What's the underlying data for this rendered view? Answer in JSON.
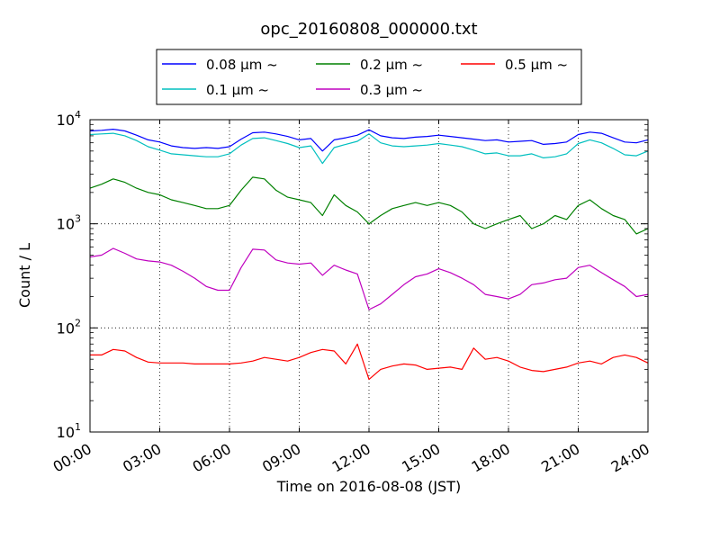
{
  "chart_data": {
    "type": "line",
    "title": "opc_20160808_000000.txt",
    "xlabel": "Time on 2016-08-08 (JST)",
    "ylabel": "Count / L",
    "xlim": [
      "00:00",
      "24:00"
    ],
    "ylim": [
      10,
      10000
    ],
    "yscale": "log",
    "grid": true,
    "legend_position": "top-center",
    "x_ticks": [
      "00:00",
      "03:00",
      "06:00",
      "09:00",
      "12:00",
      "15:00",
      "18:00",
      "21:00",
      "24:00"
    ],
    "y_ticks": [
      {
        "value": 10,
        "base": "10",
        "exp": "1"
      },
      {
        "value": 100,
        "base": "10",
        "exp": "2"
      },
      {
        "value": 1000,
        "base": "10",
        "exp": "3"
      },
      {
        "value": 10000,
        "base": "10",
        "exp": "4"
      }
    ],
    "x": [
      "00:00",
      "00:30",
      "01:00",
      "01:30",
      "02:00",
      "02:30",
      "03:00",
      "03:30",
      "04:00",
      "04:30",
      "05:00",
      "05:30",
      "06:00",
      "06:30",
      "07:00",
      "07:30",
      "08:00",
      "08:30",
      "09:00",
      "09:30",
      "10:00",
      "10:30",
      "11:00",
      "11:30",
      "12:00",
      "12:30",
      "13:00",
      "13:30",
      "14:00",
      "14:30",
      "15:00",
      "15:30",
      "16:00",
      "16:30",
      "17:00",
      "17:30",
      "18:00",
      "18:30",
      "19:00",
      "19:30",
      "20:00",
      "20:30",
      "21:00",
      "21:30",
      "22:00",
      "22:30",
      "23:00",
      "23:30",
      "24:00"
    ],
    "series": [
      {
        "name": "0.08 μm ~",
        "color": "#0000ff",
        "values": [
          7800,
          7900,
          8100,
          7800,
          7100,
          6400,
          6100,
          5600,
          5400,
          5300,
          5400,
          5300,
          5500,
          6500,
          7500,
          7600,
          7300,
          6900,
          6400,
          6600,
          5000,
          6400,
          6700,
          7100,
          8000,
          7000,
          6700,
          6600,
          6800,
          6900,
          7100,
          6900,
          6700,
          6500,
          6300,
          6400,
          6100,
          6200,
          6300,
          5800,
          5900,
          6100,
          7200,
          7600,
          7400,
          6700,
          6100,
          6000,
          6400
        ]
      },
      {
        "name": "0.1 μm ~",
        "color": "#00bfbf",
        "values": [
          7200,
          7300,
          7400,
          7000,
          6300,
          5500,
          5100,
          4700,
          4600,
          4500,
          4400,
          4400,
          4700,
          5700,
          6600,
          6700,
          6300,
          5900,
          5400,
          5600,
          3800,
          5400,
          5800,
          6200,
          7300,
          6000,
          5600,
          5500,
          5600,
          5700,
          5900,
          5700,
          5500,
          5100,
          4700,
          4800,
          4500,
          4500,
          4700,
          4300,
          4400,
          4700,
          5900,
          6400,
          6000,
          5300,
          4600,
          4500,
          5000
        ]
      },
      {
        "name": "0.2 μm ~",
        "color": "#008000",
        "values": [
          2200,
          2400,
          2700,
          2500,
          2200,
          2000,
          1900,
          1700,
          1600,
          1500,
          1400,
          1400,
          1500,
          2100,
          2800,
          2700,
          2100,
          1800,
          1700,
          1600,
          1200,
          1900,
          1500,
          1300,
          1000,
          1200,
          1400,
          1500,
          1600,
          1500,
          1600,
          1500,
          1300,
          1000,
          900,
          1000,
          1100,
          1200,
          900,
          1000,
          1200,
          1100,
          1500,
          1700,
          1400,
          1200,
          1100,
          800,
          900
        ]
      },
      {
        "name": "0.3 μm ~",
        "color": "#bf00bf",
        "values": [
          480,
          500,
          580,
          520,
          460,
          440,
          430,
          400,
          350,
          300,
          250,
          230,
          230,
          380,
          570,
          560,
          450,
          420,
          410,
          420,
          320,
          400,
          360,
          330,
          150,
          170,
          210,
          260,
          310,
          330,
          370,
          340,
          300,
          260,
          210,
          200,
          190,
          210,
          260,
          270,
          290,
          300,
          380,
          400,
          340,
          290,
          250,
          200,
          210
        ]
      },
      {
        "name": "0.5 μm ~",
        "color": "#ff0000",
        "values": [
          55,
          55,
          62,
          60,
          52,
          47,
          46,
          46,
          46,
          45,
          45,
          45,
          45,
          46,
          48,
          52,
          50,
          48,
          52,
          58,
          62,
          60,
          45,
          70,
          32,
          40,
          43,
          45,
          44,
          40,
          41,
          42,
          40,
          64,
          50,
          52,
          48,
          42,
          39,
          38,
          40,
          42,
          46,
          48,
          45,
          52,
          55,
          52,
          46
        ]
      }
    ]
  }
}
